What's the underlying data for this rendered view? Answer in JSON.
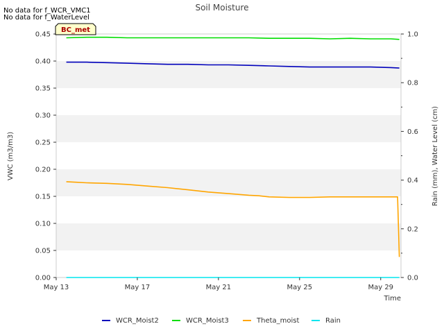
{
  "notes": [
    "No data for f_WCR_VMC1",
    "No data for f_WaterLevel"
  ],
  "badge": "BC_met",
  "chart_data": {
    "type": "line",
    "title": "Soil Moisture",
    "xlabel": "Time",
    "ylabel": "VWC (m3/m3)",
    "y2label": "Rain (mm), Water Level (cm)",
    "x_start": "2024-05-13",
    "x_end": "2024-05-30",
    "xlim": [
      "2024-05-13",
      "2024-05-30"
    ],
    "ylim": [
      0,
      0.45
    ],
    "y2lim": [
      0,
      1.0
    ],
    "x_ticks": [
      {
        "date": "2024-05-13",
        "label": "May 13"
      },
      {
        "date": "2024-05-17",
        "label": "May 17"
      },
      {
        "date": "2024-05-21",
        "label": "May 21"
      },
      {
        "date": "2024-05-25",
        "label": "May 25"
      },
      {
        "date": "2024-05-29",
        "label": "May 29"
      }
    ],
    "y_ticks": [
      "0.00",
      "0.05",
      "0.10",
      "0.15",
      "0.20",
      "0.25",
      "0.30",
      "0.35",
      "0.40",
      "0.45"
    ],
    "y2_ticks": [
      "0.0",
      "0.2",
      "0.4",
      "0.6",
      "0.8",
      "1.0"
    ],
    "grid": "alternating horizontal bands",
    "legend_position": "bottom",
    "series": [
      {
        "name": "WCR_Moist2",
        "axis": "left",
        "color": "#0000bb",
        "points": [
          [
            "2024-05-13 12:00",
            0.398
          ],
          [
            "2024-05-14 12:00",
            0.398
          ],
          [
            "2024-05-15 12:00",
            0.397
          ],
          [
            "2024-05-16 12:00",
            0.396
          ],
          [
            "2024-05-17 12:00",
            0.395
          ],
          [
            "2024-05-18 12:00",
            0.394
          ],
          [
            "2024-05-19 12:00",
            0.394
          ],
          [
            "2024-05-20 12:00",
            0.393
          ],
          [
            "2024-05-21 12:00",
            0.393
          ],
          [
            "2024-05-22 12:00",
            0.392
          ],
          [
            "2024-05-23 12:00",
            0.391
          ],
          [
            "2024-05-24 12:00",
            0.39
          ],
          [
            "2024-05-25 12:00",
            0.389
          ],
          [
            "2024-05-26 12:00",
            0.389
          ],
          [
            "2024-05-27 12:00",
            0.389
          ],
          [
            "2024-05-28 12:00",
            0.389
          ],
          [
            "2024-05-29 12:00",
            0.388
          ],
          [
            "2024-05-29 22:00",
            0.387
          ]
        ]
      },
      {
        "name": "WCR_Moist3",
        "axis": "left",
        "color": "#00dd00",
        "points": [
          [
            "2024-05-13 12:00",
            0.443
          ],
          [
            "2024-05-14 12:00",
            0.444
          ],
          [
            "2024-05-15 12:00",
            0.444
          ],
          [
            "2024-05-16 12:00",
            0.443
          ],
          [
            "2024-05-17 12:00",
            0.443
          ],
          [
            "2024-05-18 12:00",
            0.443
          ],
          [
            "2024-05-19 12:00",
            0.443
          ],
          [
            "2024-05-20 12:00",
            0.443
          ],
          [
            "2024-05-21 12:00",
            0.443
          ],
          [
            "2024-05-22 12:00",
            0.443
          ],
          [
            "2024-05-23 12:00",
            0.442
          ],
          [
            "2024-05-24 12:00",
            0.442
          ],
          [
            "2024-05-25 12:00",
            0.442
          ],
          [
            "2024-05-26 12:00",
            0.441
          ],
          [
            "2024-05-27 12:00",
            0.442
          ],
          [
            "2024-05-28 12:00",
            0.441
          ],
          [
            "2024-05-29 12:00",
            0.441
          ],
          [
            "2024-05-29 22:00",
            0.44
          ]
        ]
      },
      {
        "name": "Theta_moist",
        "axis": "left",
        "color": "#ffa500",
        "points": [
          [
            "2024-05-13 12:00",
            0.177
          ],
          [
            "2024-05-14 00:00",
            0.176
          ],
          [
            "2024-05-14 12:00",
            0.175
          ],
          [
            "2024-05-15 12:00",
            0.174
          ],
          [
            "2024-05-16 12:00",
            0.172
          ],
          [
            "2024-05-17 12:00",
            0.169
          ],
          [
            "2024-05-18 12:00",
            0.166
          ],
          [
            "2024-05-19 12:00",
            0.162
          ],
          [
            "2024-05-20 12:00",
            0.158
          ],
          [
            "2024-05-21 12:00",
            0.155
          ],
          [
            "2024-05-22 12:00",
            0.152
          ],
          [
            "2024-05-23 00:00",
            0.151
          ],
          [
            "2024-05-23 12:00",
            0.149
          ],
          [
            "2024-05-24 12:00",
            0.148
          ],
          [
            "2024-05-25 12:00",
            0.148
          ],
          [
            "2024-05-26 12:00",
            0.149
          ],
          [
            "2024-05-27 12:00",
            0.149
          ],
          [
            "2024-05-28 12:00",
            0.149
          ],
          [
            "2024-05-29 12:00",
            0.149
          ],
          [
            "2024-05-29 20:00",
            0.149
          ],
          [
            "2024-05-29 22:00",
            0.038
          ]
        ]
      },
      {
        "name": "Rain",
        "axis": "right",
        "color": "#00e5ee",
        "points": [
          [
            "2024-05-13 12:00",
            0.0
          ],
          [
            "2024-05-29 22:00",
            0.0
          ]
        ]
      }
    ]
  }
}
